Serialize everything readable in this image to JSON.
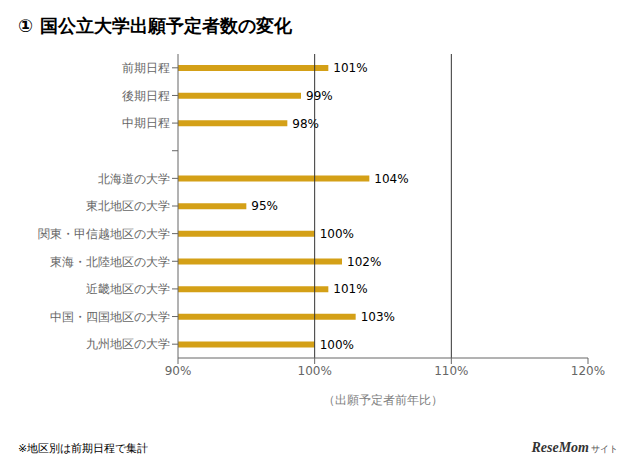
{
  "chart_data": {
    "type": "bar",
    "orientation": "horizontal",
    "title": "① 国公立大学出願予定者数の変化",
    "categories": [
      "前期日程",
      "後期日程",
      "中期日程",
      null,
      "北海道の大学",
      "東北地区の大学",
      "関東・甲信越地区の大学",
      "東海・北陸地区の大学",
      "近畿地区の大学",
      "中国・四国地区の大学",
      "九州地区の大学"
    ],
    "values": [
      101,
      99,
      98,
      null,
      104,
      95,
      100,
      102,
      101,
      103,
      100
    ],
    "value_labels": [
      "101%",
      "99%",
      "98%",
      null,
      "104%",
      "95%",
      "100%",
      "102%",
      "101%",
      "103%",
      "100%"
    ],
    "data_labels": true,
    "color": "#D4A017",
    "xlim": [
      90,
      120
    ],
    "xticks": [
      {
        "value": 90,
        "label": "90%"
      },
      {
        "value": 100,
        "label": "100%"
      },
      {
        "value": 110,
        "label": "110%"
      },
      {
        "value": 120,
        "label": "120%"
      }
    ],
    "x_label": "（出願予定者前年比）",
    "vlines": [
      100,
      110
    ],
    "grid": false,
    "note": "※地区別は前期日程で集計",
    "annotations": [
      "ReseMom",
      "サイト"
    ]
  }
}
